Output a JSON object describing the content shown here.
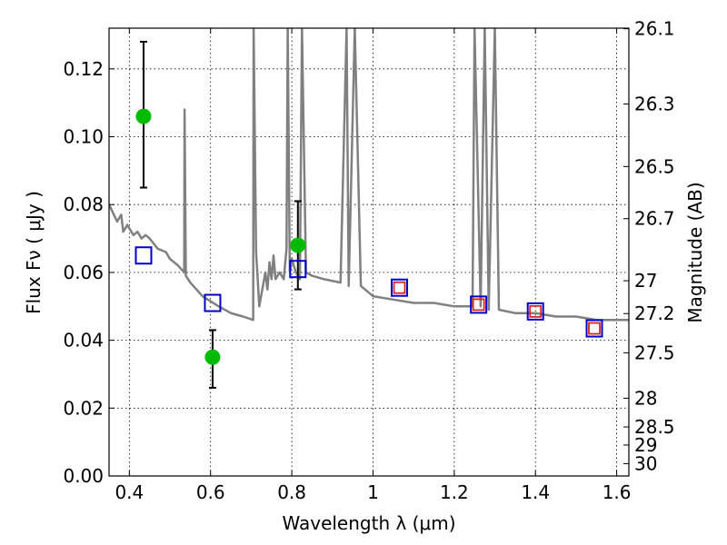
{
  "chart_data": {
    "type": "scatter",
    "title": "",
    "xlabel": "Wavelength  λ (μm)",
    "ylabel": "Flux  Fν  ( μJy )",
    "y2label": "Magnitude (AB)",
    "xlim": [
      0.35,
      1.63
    ],
    "ylim": [
      0.0,
      0.132
    ],
    "grid": true,
    "x_ticks": [
      0.4,
      0.6,
      0.8,
      1.0,
      1.2,
      1.4,
      1.6
    ],
    "x_tick_labels": [
      "0.4",
      "0.6",
      "0.8",
      "1",
      "1.2",
      "1.4",
      "1.6"
    ],
    "y_ticks": [
      0.0,
      0.02,
      0.04,
      0.06,
      0.08,
      0.1,
      0.12
    ],
    "y_tick_labels": [
      "0.00",
      "0.02",
      "0.04",
      "0.06",
      "0.08",
      "0.10",
      "0.12"
    ],
    "mag_ticks": [
      26.1,
      26.3,
      26.5,
      26.7,
      27,
      27.2,
      27.5,
      28,
      28.5,
      29,
      30
    ],
    "mag_tick_labels": [
      "26.1",
      "26.3",
      "26.5",
      "26.7",
      "27",
      "27.2",
      "27.5",
      "28",
      "28.5",
      "29",
      "30"
    ],
    "series": [
      {
        "style": "points-with-errorbars",
        "color": "#00bb00",
        "x": [
          0.435,
          0.605,
          0.815
        ],
        "y": [
          0.106,
          0.035,
          0.068
        ],
        "err_low": [
          0.085,
          0.026,
          0.055
        ],
        "err_high": [
          0.128,
          0.043,
          0.081
        ]
      },
      {
        "style": "open-squares",
        "color": "#0000cc",
        "x": [
          0.435,
          0.605,
          0.815,
          1.065,
          1.26,
          1.4,
          1.545
        ],
        "y": [
          0.065,
          0.051,
          0.061,
          0.0555,
          0.0505,
          0.0485,
          0.0435
        ]
      },
      {
        "style": "small-open-squares",
        "color": "#dd2222",
        "x": [
          1.065,
          1.26,
          1.4,
          1.545
        ],
        "y": [
          0.0555,
          0.0505,
          0.0485,
          0.0435
        ]
      },
      {
        "style": "line",
        "color": "#808080",
        "x": [
          0.35,
          0.37,
          0.38,
          0.385,
          0.395,
          0.4,
          0.41,
          0.42,
          0.43,
          0.44,
          0.45,
          0.47,
          0.49,
          0.5,
          0.51,
          0.52,
          0.535,
          0.536,
          0.539,
          0.55,
          0.58,
          0.62,
          0.65,
          0.68,
          0.705,
          0.706,
          0.712,
          0.716,
          0.72,
          0.735,
          0.74,
          0.745,
          0.75,
          0.755,
          0.76,
          0.77,
          0.78,
          0.787,
          0.79,
          0.795,
          0.8,
          0.81,
          0.82,
          0.825,
          0.835,
          0.85,
          0.88,
          0.92,
          0.935,
          0.94,
          0.955,
          0.97,
          1.0,
          1.05,
          1.1,
          1.15,
          1.2,
          1.245,
          1.25,
          1.265,
          1.275,
          1.285,
          1.3,
          1.31,
          1.35,
          1.4,
          1.45,
          1.5,
          1.55,
          1.6,
          1.63
        ],
        "y": [
          0.08,
          0.075,
          0.077,
          0.072,
          0.074,
          0.073,
          0.071,
          0.072,
          0.07,
          0.071,
          0.07,
          0.067,
          0.066,
          0.064,
          0.063,
          0.062,
          0.06,
          0.108,
          0.059,
          0.057,
          0.053,
          0.05,
          0.048,
          0.047,
          0.046,
          0.132,
          0.066,
          0.058,
          0.05,
          0.06,
          0.055,
          0.063,
          0.058,
          0.065,
          0.058,
          0.06,
          0.058,
          0.067,
          0.132,
          0.06,
          0.064,
          0.06,
          0.058,
          0.132,
          0.06,
          0.059,
          0.058,
          0.057,
          0.132,
          0.056,
          0.132,
          0.056,
          0.053,
          0.052,
          0.051,
          0.051,
          0.05,
          0.05,
          0.132,
          0.05,
          0.132,
          0.049,
          0.132,
          0.049,
          0.048,
          0.048,
          0.047,
          0.047,
          0.046,
          0.046,
          0.046
        ]
      }
    ]
  }
}
